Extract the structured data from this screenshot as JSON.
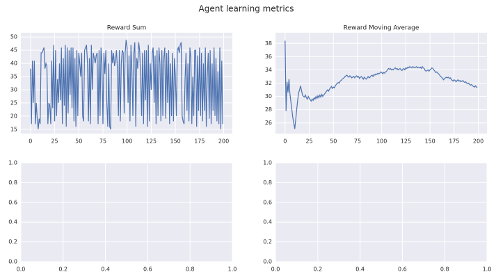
{
  "title": "Agent learning metrics",
  "chart_data": [
    {
      "type": "line",
      "title": "Reward Sum",
      "x": [
        0,
        1,
        2,
        3,
        4,
        5,
        6,
        7,
        8,
        9,
        10,
        11,
        12,
        13,
        14,
        15,
        16,
        17,
        18,
        19,
        20,
        21,
        22,
        23,
        24,
        25,
        26,
        27,
        28,
        29,
        30,
        31,
        32,
        33,
        34,
        35,
        36,
        37,
        38,
        39,
        40,
        41,
        42,
        43,
        44,
        45,
        46,
        47,
        48,
        49,
        50,
        51,
        52,
        53,
        54,
        55,
        56,
        57,
        58,
        59,
        60,
        61,
        62,
        63,
        64,
        65,
        66,
        67,
        68,
        69,
        70,
        71,
        72,
        73,
        74,
        75,
        76,
        77,
        78,
        79,
        80,
        81,
        82,
        83,
        84,
        85,
        86,
        87,
        88,
        89,
        90,
        91,
        92,
        93,
        94,
        95,
        96,
        97,
        98,
        99,
        100,
        101,
        102,
        103,
        104,
        105,
        106,
        107,
        108,
        109,
        110,
        111,
        112,
        113,
        114,
        115,
        116,
        117,
        118,
        119,
        120,
        121,
        122,
        123,
        124,
        125,
        126,
        127,
        128,
        129,
        130,
        131,
        132,
        133,
        134,
        135,
        136,
        137,
        138,
        139,
        140,
        141,
        142,
        143,
        144,
        145,
        146,
        147,
        148,
        149,
        150,
        151,
        152,
        153,
        154,
        155,
        156,
        157,
        158,
        159,
        160,
        161,
        162,
        163,
        164,
        165,
        166,
        167,
        168,
        169,
        170,
        171,
        172,
        173,
        174,
        175,
        176,
        177,
        178,
        179,
        180,
        181,
        182,
        183,
        184,
        185,
        186,
        187,
        188,
        189,
        190,
        191,
        192,
        193,
        194,
        195,
        196,
        197,
        198,
        199
      ],
      "series": [
        {
          "color": "#4c72b0",
          "values": [
            38,
            17,
            41,
            25,
            41,
            17,
            25,
            19,
            15,
            19,
            17,
            44,
            44,
            45,
            46,
            38,
            40,
            39,
            17,
            25,
            24,
            17,
            41,
            23,
            47,
            18,
            45,
            20,
            34,
            25,
            40,
            26,
            46,
            17,
            42,
            24,
            47,
            16,
            46,
            21,
            45,
            28,
            46,
            23,
            46,
            18,
            42,
            16,
            45,
            20,
            44,
            40,
            35,
            44,
            20,
            18,
            45,
            46,
            47,
            40,
            18,
            42,
            17,
            47,
            30,
            44,
            42,
            40,
            43,
            44,
            17,
            45,
            20,
            46,
            40,
            17,
            44,
            36,
            45,
            25,
            16,
            40,
            16,
            15,
            45,
            40,
            44,
            39,
            41,
            45,
            38,
            20,
            45,
            18,
            40,
            45,
            44,
            21,
            44,
            49,
            46,
            25,
            43,
            18,
            47,
            37,
            20,
            44,
            48,
            16,
            42,
            38,
            48,
            45,
            35,
            20,
            44,
            17,
            45,
            26,
            45,
            16,
            47,
            18,
            40,
            30,
            44,
            46,
            25,
            43,
            17,
            45,
            20,
            46,
            40,
            18,
            45,
            20,
            42,
            46,
            19,
            44,
            25,
            45,
            17,
            40,
            20,
            44,
            18,
            42,
            35,
            20,
            45,
            46,
            44,
            47,
            48,
            20,
            18,
            17,
            34,
            44,
            22,
            40,
            18,
            46,
            42,
            17,
            35,
            20,
            45,
            45,
            16,
            43,
            22,
            46,
            20,
            44,
            18,
            40,
            22,
            46,
            16,
            35,
            44,
            19,
            45,
            17,
            40,
            22,
            46,
            20,
            42,
            18,
            37,
            17,
            46,
            15,
            41,
            17
          ]
        }
      ],
      "xlim": [
        -9.95,
        208.95
      ],
      "ylim": [
        13.35,
        51.65
      ],
      "xticks": [
        0,
        25,
        50,
        75,
        100,
        125,
        150,
        175,
        200
      ],
      "yticks": [
        15,
        20,
        25,
        30,
        35,
        40,
        45,
        50
      ],
      "grid": true
    },
    {
      "type": "line",
      "title": "Reward Moving Average",
      "x": [
        0,
        1,
        2,
        3,
        4,
        5,
        6,
        7,
        8,
        9,
        10,
        11,
        12,
        13,
        14,
        15,
        16,
        17,
        18,
        19,
        20,
        21,
        22,
        23,
        24,
        25,
        26,
        27,
        28,
        29,
        30,
        31,
        32,
        33,
        34,
        35,
        36,
        37,
        38,
        39,
        40,
        41,
        42,
        43,
        44,
        45,
        46,
        47,
        48,
        49,
        50,
        51,
        52,
        53,
        54,
        55,
        56,
        57,
        58,
        59,
        60,
        61,
        62,
        63,
        64,
        65,
        66,
        67,
        68,
        69,
        70,
        71,
        72,
        73,
        74,
        75,
        76,
        77,
        78,
        79,
        80,
        81,
        82,
        83,
        84,
        85,
        86,
        87,
        88,
        89,
        90,
        91,
        92,
        93,
        94,
        95,
        96,
        97,
        98,
        99,
        100,
        101,
        102,
        103,
        104,
        105,
        106,
        107,
        108,
        109,
        110,
        111,
        112,
        113,
        114,
        115,
        116,
        117,
        118,
        119,
        120,
        121,
        122,
        123,
        124,
        125,
        126,
        127,
        128,
        129,
        130,
        131,
        132,
        133,
        134,
        135,
        136,
        137,
        138,
        139,
        140,
        141,
        142,
        143,
        144,
        145,
        146,
        147,
        148,
        149,
        150,
        151,
        152,
        153,
        154,
        155,
        156,
        157,
        158,
        159,
        160,
        161,
        162,
        163,
        164,
        165,
        166,
        167,
        168,
        169,
        170,
        171,
        172,
        173,
        174,
        175,
        176,
        177,
        178,
        179,
        180,
        181,
        182,
        183,
        184,
        185,
        186,
        187,
        188,
        189,
        190,
        191,
        192,
        193,
        194,
        195,
        196,
        197,
        198,
        199
      ],
      "series": [
        {
          "color": "#4c72b0",
          "values": [
            38.4,
            27.8,
            32.2,
            30.6,
            32.6,
            30.4,
            29.2,
            28.0,
            26.8,
            26.0,
            25.1,
            26.5,
            28.0,
            29.4,
            30.5,
            31.0,
            31.6,
            30.9,
            30.2,
            30.0,
            29.9,
            30.2,
            29.8,
            29.6,
            30.0,
            29.7,
            29.5,
            29.3,
            29.6,
            29.4,
            29.8,
            29.6,
            30.0,
            29.7,
            30.1,
            29.8,
            30.2,
            29.9,
            30.3,
            30.0,
            30.2,
            30.4,
            30.6,
            30.8,
            31.0,
            30.8,
            31.1,
            31.3,
            31.5,
            31.2,
            31.4,
            31.3,
            31.6,
            31.8,
            32.0,
            32.1,
            32.0,
            32.3,
            32.4,
            32.6,
            32.7,
            32.8,
            33.0,
            33.1,
            33.2,
            33.0,
            32.9,
            33.1,
            33.0,
            32.8,
            32.9,
            33.0,
            32.8,
            33.0,
            33.1,
            32.9,
            33.0,
            32.7,
            32.9,
            33.0,
            32.8,
            32.6,
            32.9,
            32.7,
            32.6,
            32.8,
            33.0,
            32.8,
            32.9,
            33.1,
            33.2,
            33.0,
            33.3,
            33.2,
            33.4,
            33.3,
            33.5,
            33.4,
            33.5,
            33.7,
            33.6,
            33.4,
            33.6,
            33.5,
            33.7,
            33.8,
            34.0,
            34.2,
            34.1,
            34.2,
            34.0,
            34.1,
            34.0,
            34.2,
            34.3,
            34.1,
            34.2,
            34.0,
            34.1,
            34.2,
            34.0,
            33.9,
            34.1,
            34.2,
            34.0,
            34.3,
            34.2,
            34.4,
            34.3,
            34.5,
            34.4,
            34.3,
            34.5,
            34.4,
            34.3,
            34.4,
            34.5,
            34.3,
            34.4,
            34.3,
            34.4,
            34.2,
            34.5,
            34.3,
            34.2,
            33.9,
            33.8,
            33.9,
            34.0,
            33.8,
            34.0,
            34.1,
            34.3,
            34.2,
            34.0,
            33.8,
            33.6,
            33.7,
            33.5,
            33.4,
            33.2,
            33.0,
            32.9,
            32.7,
            32.5,
            32.7,
            32.8,
            32.9,
            32.8,
            32.9,
            32.7,
            32.8,
            32.6,
            32.4,
            32.3,
            32.5,
            32.4,
            32.2,
            32.4,
            32.5,
            32.3,
            32.4,
            32.2,
            32.3,
            32.4,
            32.2,
            32.1,
            32.2,
            32.0,
            31.9,
            32.0,
            31.8,
            31.7,
            31.8,
            31.6,
            31.5,
            31.4,
            31.6,
            31.4,
            31.4
          ]
        }
      ],
      "xlim": [
        -9.95,
        208.95
      ],
      "ylim": [
        24.4,
        39.6
      ],
      "xticks": [
        0,
        25,
        50,
        75,
        100,
        125,
        150,
        175,
        200
      ],
      "yticks": [
        26,
        28,
        30,
        32,
        34,
        36,
        38
      ],
      "grid": true
    },
    {
      "type": "line",
      "series": [],
      "xlim": [
        0,
        1
      ],
      "ylim": [
        0,
        1
      ],
      "xticks": [
        {
          "value": 0,
          "label": "0.0"
        },
        {
          "value": 0.2,
          "label": "0.2"
        },
        {
          "value": 0.4,
          "label": "0.4"
        },
        {
          "value": 0.6,
          "label": "0.6"
        },
        {
          "value": 0.8,
          "label": "0.8"
        },
        {
          "value": 1,
          "label": "1.0"
        }
      ],
      "yticks": [
        {
          "value": 0,
          "label": "0.0"
        },
        {
          "value": 0.2,
          "label": "0.2"
        },
        {
          "value": 0.4,
          "label": "0.4"
        },
        {
          "value": 0.6,
          "label": "0.6"
        },
        {
          "value": 0.8,
          "label": "0.8"
        },
        {
          "value": 1,
          "label": "1.0"
        }
      ],
      "grid": true
    },
    {
      "type": "line",
      "series": [],
      "xlim": [
        0,
        1
      ],
      "ylim": [
        0,
        1
      ],
      "xticks": [
        {
          "value": 0,
          "label": "0.0"
        },
        {
          "value": 0.2,
          "label": "0.2"
        },
        {
          "value": 0.4,
          "label": "0.4"
        },
        {
          "value": 0.6,
          "label": "0.6"
        },
        {
          "value": 0.8,
          "label": "0.8"
        },
        {
          "value": 1,
          "label": "1.0"
        }
      ],
      "yticks": [
        {
          "value": 0,
          "label": "0.0"
        },
        {
          "value": 0.2,
          "label": "0.2"
        },
        {
          "value": 0.4,
          "label": "0.4"
        },
        {
          "value": 0.6,
          "label": "0.6"
        },
        {
          "value": 0.8,
          "label": "0.8"
        },
        {
          "value": 1,
          "label": "1.0"
        }
      ],
      "grid": true
    }
  ]
}
